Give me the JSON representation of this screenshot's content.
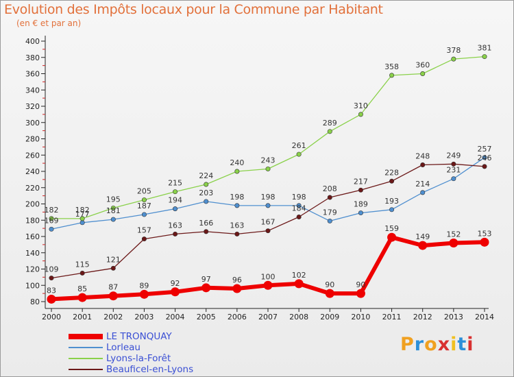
{
  "title": "Evolution des Impôts locaux pour la Commune par Habitant",
  "subtitle": "(en € et par an)",
  "brand": {
    "letters": [
      "P",
      "r",
      "o",
      "x",
      "i",
      "t",
      "i"
    ],
    "colors": [
      "#f0a020",
      "#2c8fd8",
      "#f0a020",
      "#d83030",
      "#f0c020",
      "#2c8fd8",
      "#d83030"
    ]
  },
  "chart_data": {
    "type": "line",
    "x": [
      "2000",
      "2001",
      "2002",
      "2003",
      "2004",
      "2005",
      "2006",
      "2007",
      "2008",
      "2009",
      "2010",
      "2011",
      "2012",
      "2013",
      "2014"
    ],
    "ylim": [
      80,
      400
    ],
    "yticks": [
      "80",
      "100",
      "120",
      "140",
      "160",
      "180",
      "200",
      "220",
      "240",
      "260",
      "280",
      "300",
      "320",
      "340",
      "360",
      "380",
      "400"
    ],
    "grid": "none",
    "legend_position": "bottom-left",
    "series": [
      {
        "name": "LE TRONQUAY",
        "color": "#ee0000",
        "emphasis": "thick",
        "values": [
          83,
          85,
          87,
          89,
          92,
          97,
          96,
          100,
          102,
          90,
          90,
          159,
          149,
          152,
          153
        ],
        "labels": [
          "83",
          "85",
          "87",
          "89",
          "92",
          "97",
          "96",
          "100",
          "102",
          "90",
          "90",
          "159",
          "149",
          "152",
          "153"
        ]
      },
      {
        "name": "Lorleau",
        "color": "#4f8fcf",
        "emphasis": "thin",
        "values": [
          169,
          177,
          181,
          187,
          194,
          203,
          198,
          198,
          198,
          179,
          189,
          193,
          214,
          231,
          257
        ],
        "labels": [
          "169",
          "177",
          "181",
          "187",
          "194",
          "203",
          "198",
          "198",
          "198",
          "179",
          "189",
          "193",
          "214",
          "231",
          "257"
        ]
      },
      {
        "name": "Lyons-la-Forêt",
        "color": "#8ad14a",
        "emphasis": "thin",
        "values": [
          182,
          182,
          195,
          205,
          215,
          224,
          240,
          243,
          261,
          289,
          310,
          358,
          360,
          378,
          381
        ],
        "labels": [
          "182",
          "182",
          "195",
          "205",
          "215",
          "224",
          "240",
          "243",
          "261",
          "289",
          "310",
          "358",
          "360",
          "378",
          "381"
        ]
      },
      {
        "name": "Beauficel-en-Lyons",
        "color": "#6b1818",
        "emphasis": "thin",
        "values": [
          109,
          115,
          121,
          157,
          163,
          166,
          163,
          167,
          184,
          208,
          217,
          228,
          248,
          249,
          246
        ],
        "labels": [
          "109",
          "115",
          "121",
          "157",
          "163",
          "166",
          "163",
          "167",
          "184",
          "208",
          "217",
          "228",
          "248",
          "249",
          "246"
        ]
      }
    ]
  }
}
